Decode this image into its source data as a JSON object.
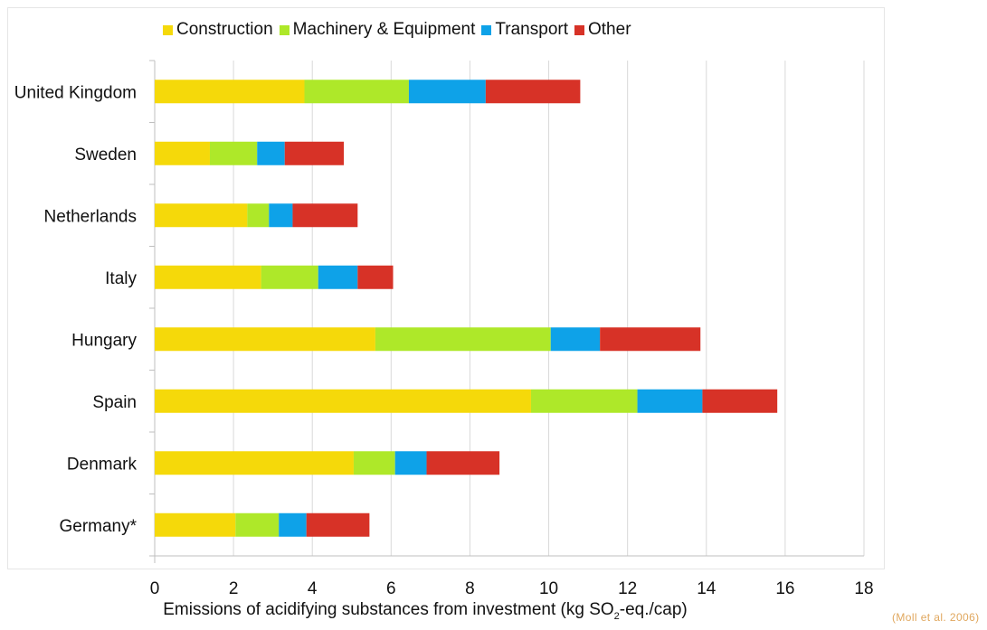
{
  "chart_data": {
    "type": "bar",
    "orientation": "horizontal",
    "stacked": true,
    "title": "",
    "xlabel": "Emissions of acidifying substances from investment (kg SO2-eq./cap)",
    "xlabel_parts": {
      "before": "Emissions of acidifying substances from investment (kg SO",
      "sub": "2",
      "after": "-eq./cap)"
    },
    "ylabel": "",
    "xlim": [
      0,
      18
    ],
    "xticks": [
      0,
      2,
      4,
      6,
      8,
      10,
      12,
      14,
      16,
      18
    ],
    "grid": "vertical",
    "legend_position": "top",
    "categories": [
      "United Kingdom",
      "Sweden",
      "Netherlands",
      "Italy",
      "Hungary",
      "Spain",
      "Denmark",
      "Germany*"
    ],
    "series": [
      {
        "name": "Construction",
        "color": "#f5d90a",
        "values": [
          3.8,
          1.4,
          2.35,
          2.7,
          5.6,
          9.55,
          5.05,
          2.05
        ]
      },
      {
        "name": "Machinery & Equipment",
        "color": "#aee829",
        "values": [
          2.65,
          1.2,
          0.55,
          1.45,
          4.45,
          2.7,
          1.05,
          1.1
        ]
      },
      {
        "name": "Transport",
        "color": "#0ea2e8",
        "values": [
          1.95,
          0.7,
          0.6,
          1.0,
          1.25,
          1.65,
          0.8,
          0.7
        ]
      },
      {
        "name": "Other",
        "color": "#d73227",
        "values": [
          2.4,
          1.5,
          1.65,
          0.9,
          2.55,
          1.9,
          1.85,
          1.6
        ]
      }
    ]
  },
  "source": "(Moll et al. 2006)"
}
